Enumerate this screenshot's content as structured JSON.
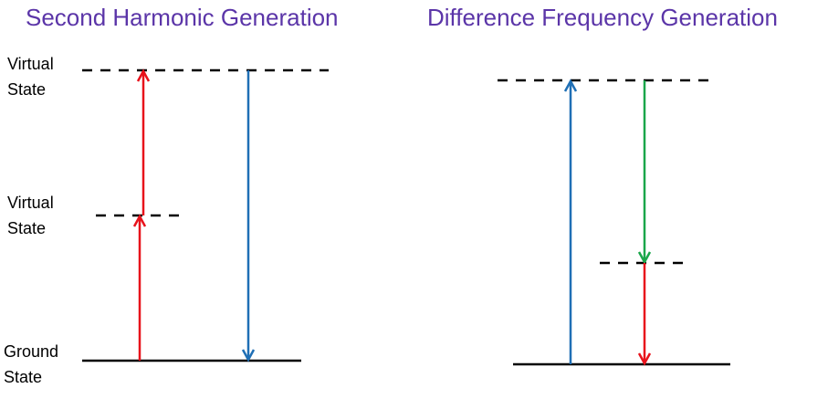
{
  "diagrams": [
    {
      "title": "Second Harmonic Generation",
      "levels": [
        {
          "lines": [
            "Virtual",
            "State"
          ]
        },
        {
          "lines": [
            "Virtual",
            "State"
          ]
        },
        {
          "lines": [
            "Ground",
            "State"
          ]
        }
      ]
    },
    {
      "title": "Difference Frequency Generation"
    }
  ]
}
